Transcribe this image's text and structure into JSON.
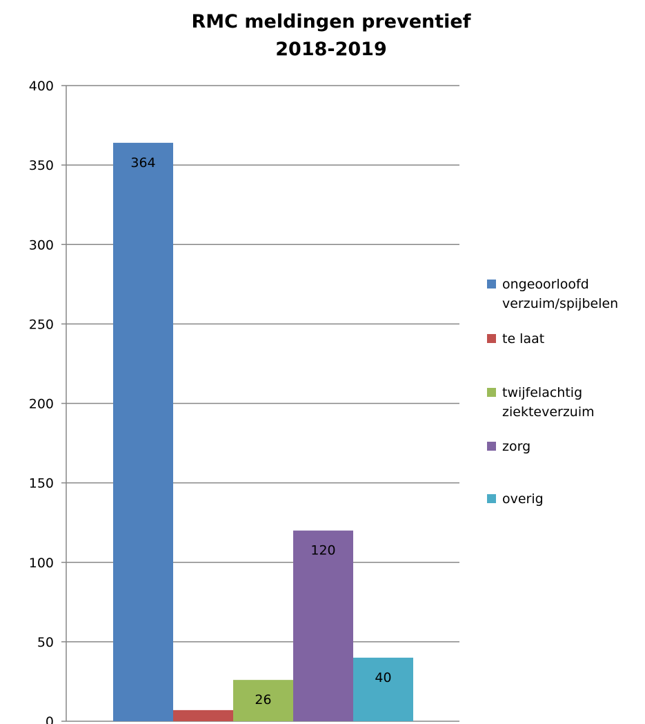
{
  "chart_data": {
    "type": "bar",
    "title_lines": [
      "RMC meldingen preventief",
      "2018-2019"
    ],
    "ylim": [
      0,
      400
    ],
    "yticks": [
      0,
      50,
      100,
      150,
      200,
      250,
      300,
      350,
      400
    ],
    "grid": true,
    "legend_position": "right",
    "series": [
      {
        "name": "ongeoorloofd\nverzuim/spijbelen",
        "value": 364,
        "color": "#4F81BD"
      },
      {
        "name": "te laat",
        "value": 7,
        "color": "#C0504D"
      },
      {
        "name": "twijfelachtig\nziekteverzuim",
        "value": 26,
        "color": "#9BBB59"
      },
      {
        "name": "zorg",
        "value": 120,
        "color": "#8064A2"
      },
      {
        "name": "overig",
        "value": 40,
        "color": "#4BACC6"
      }
    ]
  }
}
